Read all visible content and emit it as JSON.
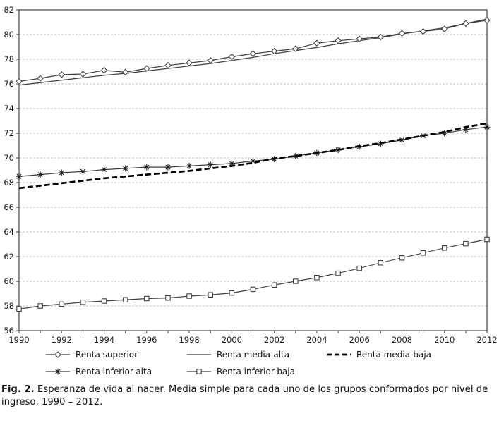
{
  "figure": {
    "caption_label": "Fig. 2.",
    "caption_text": "Esperanza de vida al nacer. Media simple para cada uno de los grupos conformados por nivel de ingreso, 1990 – 2012."
  },
  "colors": {
    "thin_line": "#3f3f3f",
    "dashed_line": "#000000",
    "grid": "#c4c4c4",
    "frame": "#454545",
    "text": "#1a1a1a",
    "marker_fill": "#ffffff"
  },
  "chart_data": {
    "type": "line",
    "x": [
      1990,
      1991,
      1992,
      1993,
      1994,
      1995,
      1996,
      1997,
      1998,
      1999,
      2000,
      2001,
      2002,
      2003,
      2004,
      2005,
      2006,
      2007,
      2008,
      2009,
      2010,
      2011,
      2012
    ],
    "x_tick_labels": [
      1990,
      1992,
      1994,
      1996,
      1998,
      2000,
      2002,
      2004,
      2006,
      2008,
      2010,
      2012
    ],
    "ylim": [
      56,
      82
    ],
    "y_ticks": [
      56,
      58,
      60,
      62,
      64,
      66,
      68,
      70,
      72,
      74,
      76,
      78,
      80,
      82
    ],
    "grid": "horizontal-dashed",
    "legend_position": "bottom",
    "series": [
      {
        "name": "Renta superior",
        "marker": "diamond",
        "line": "solid",
        "values": [
          76.2,
          76.45,
          76.75,
          76.8,
          77.1,
          76.95,
          77.25,
          77.5,
          77.7,
          77.9,
          78.2,
          78.45,
          78.65,
          78.85,
          79.3,
          79.5,
          79.65,
          79.8,
          80.1,
          80.25,
          80.45,
          80.9,
          81.15
        ]
      },
      {
        "name": "Renta media-alta",
        "marker": "none",
        "line": "solid",
        "values": [
          75.9,
          76.1,
          76.3,
          76.5,
          76.7,
          76.85,
          77.05,
          77.25,
          77.45,
          77.65,
          77.9,
          78.15,
          78.45,
          78.7,
          78.95,
          79.25,
          79.5,
          79.75,
          80.05,
          80.3,
          80.55,
          80.9,
          81.25
        ]
      },
      {
        "name": "Renta media-baja",
        "marker": "none",
        "line": "dashed-bold",
        "values": [
          67.55,
          67.75,
          67.95,
          68.15,
          68.35,
          68.5,
          68.65,
          68.8,
          68.95,
          69.15,
          69.35,
          69.6,
          69.95,
          70.15,
          70.4,
          70.65,
          70.95,
          71.2,
          71.5,
          71.8,
          72.1,
          72.5,
          72.8
        ]
      },
      {
        "name": "Renta inferior-alta",
        "marker": "asterisk",
        "line": "solid",
        "values": [
          68.5,
          68.65,
          68.8,
          68.9,
          69.05,
          69.15,
          69.25,
          69.25,
          69.35,
          69.45,
          69.55,
          69.75,
          69.9,
          70.15,
          70.4,
          70.65,
          70.9,
          71.15,
          71.45,
          71.8,
          72.0,
          72.3,
          72.5
        ]
      },
      {
        "name": "Renta inferior-baja",
        "marker": "square",
        "line": "solid",
        "values": [
          57.75,
          58.0,
          58.15,
          58.3,
          58.4,
          58.5,
          58.6,
          58.65,
          58.8,
          58.9,
          59.05,
          59.35,
          59.7,
          60.0,
          60.3,
          60.65,
          61.05,
          61.5,
          61.9,
          62.3,
          62.7,
          63.05,
          63.4
        ]
      }
    ]
  }
}
